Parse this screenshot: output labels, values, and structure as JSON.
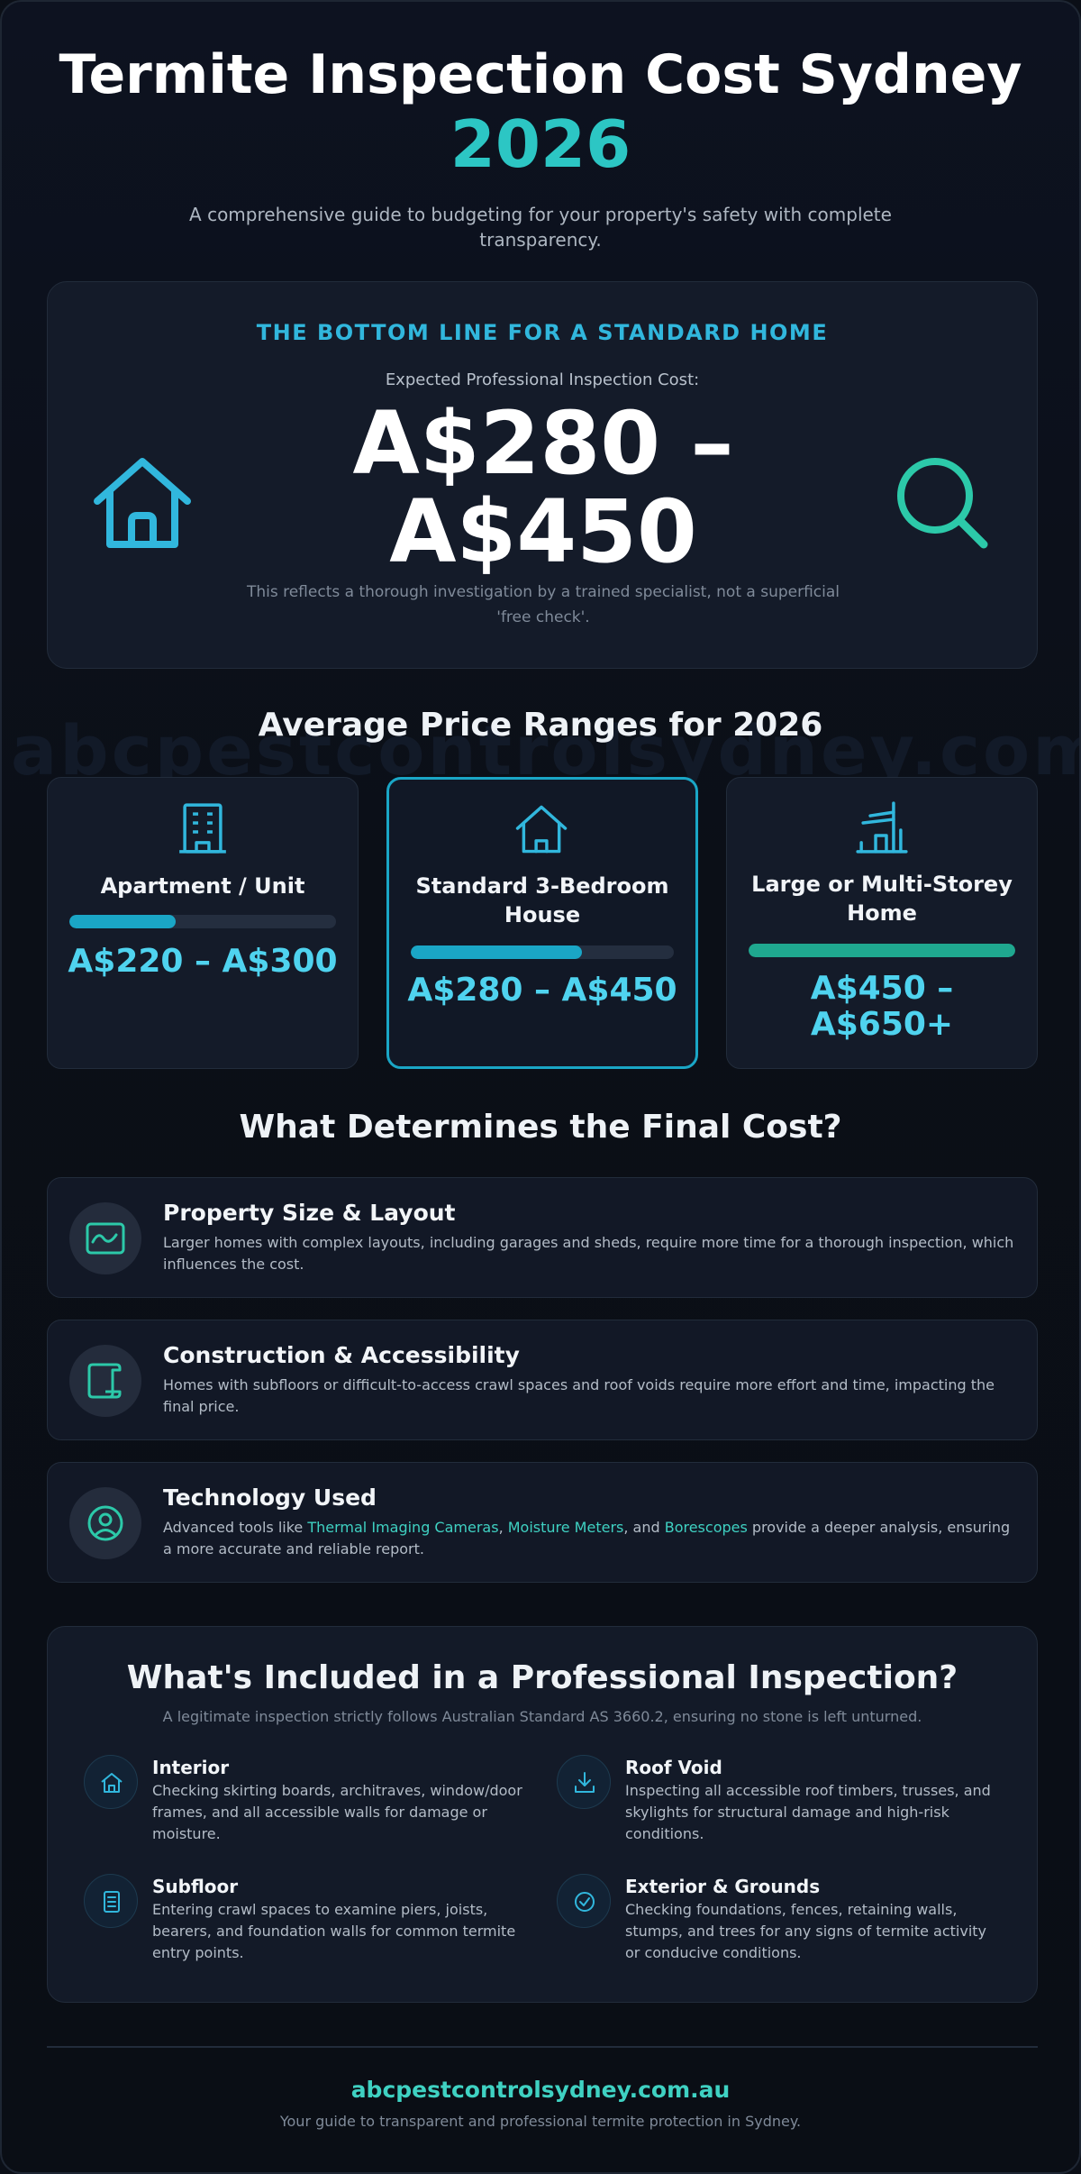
{
  "header": {
    "title": "Termite Inspection Cost Sydney",
    "year": "2026",
    "subtitle": "A comprehensive guide to budgeting for your property's safety with complete transparency."
  },
  "hero": {
    "kicker": "THE BOTTOM LINE FOR A STANDARD HOME",
    "label": "Expected Professional Inspection Cost:",
    "price": "A$280 – A$450",
    "note": "This reflects a thorough investigation by a trained specialist, not a superficial 'free check'.",
    "left_icon": "house-icon",
    "right_icon": "search-icon"
  },
  "watermark": "abcpestcontrolsydney.com.au",
  "price_ranges": {
    "title": "Average Price Ranges for 2026",
    "cards": [
      {
        "title": "Apartment / Unit",
        "price": "A$220 – A$300",
        "icon": "apartment-building-icon",
        "bar_fraction": 0.4,
        "bar_color": "#1aa6c6"
      },
      {
        "title": "Standard 3-Bedroom House",
        "price": "A$280 – A$450",
        "icon": "house-icon",
        "bar_fraction": 0.65,
        "bar_color": "#1aa6c6",
        "featured": true
      },
      {
        "title": "Large or Multi-Storey Home",
        "price": "A$450 – A$650+",
        "icon": "large-home-icon",
        "bar_fraction": 1.0,
        "bar_color": "#1fa88f"
      }
    ]
  },
  "factors": {
    "title": "What Determines the Final Cost?",
    "items": [
      {
        "title": "Property Size & Layout",
        "desc": "Larger homes with complex layouts, including garages and sheds, require more time for a thorough inspection, which influences the cost.",
        "icon": "floor-plan-icon"
      },
      {
        "title": "Construction & Accessibility",
        "desc": "Homes with subfloors or difficult-to-access crawl spaces and roof voids require more effort and time, impacting the final price.",
        "icon": "scroll-icon"
      },
      {
        "title": "Technology Used",
        "desc_parts": [
          "Advanced tools like ",
          "Thermal Imaging Cameras",
          ", ",
          "Moisture Meters",
          ", and ",
          "Borescopes",
          " provide a deeper analysis, ensuring a more accurate and reliable report."
        ],
        "icon": "user-circle-icon"
      }
    ]
  },
  "included": {
    "title": "What's Included in a Professional Inspection?",
    "subtitle": "A legitimate inspection strictly follows Australian Standard AS 3660.2, ensuring no stone is left unturned.",
    "items": [
      {
        "title": "Interior",
        "desc": "Checking skirting boards, architraves, window/door frames, and all accessible walls for damage or moisture.",
        "icon": "home-icon"
      },
      {
        "title": "Roof Void",
        "desc": "Inspecting all accessible roof timbers, trusses, and skylights for structural damage and high-risk conditions.",
        "icon": "download-tray-icon"
      },
      {
        "title": "Subfloor",
        "desc": "Entering crawl spaces to examine piers, joists, bearers, and foundation walls for common termite entry points.",
        "icon": "document-list-icon"
      },
      {
        "title": "Exterior & Grounds",
        "desc": "Checking foundations, fences, retaining walls, stumps, and trees for any signs of termite activity or conducive conditions.",
        "icon": "check-badge-icon"
      }
    ]
  },
  "footer": {
    "domain": "abcpestcontrolsydney.com.au",
    "tagline": "Your guide to transparent and professional termite protection in Sydney."
  }
}
